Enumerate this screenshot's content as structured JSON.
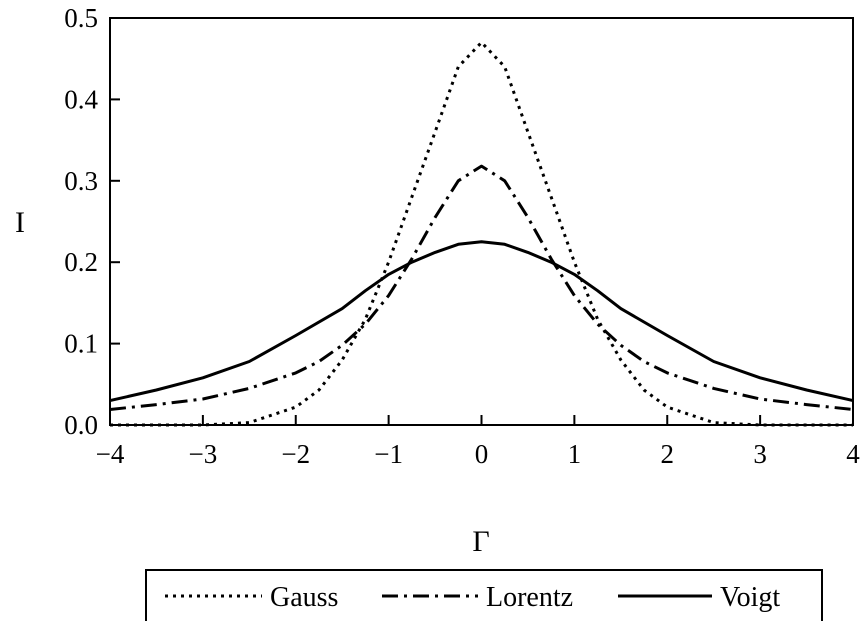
{
  "chart_data": {
    "type": "line",
    "title": "",
    "xlabel": "Γ",
    "ylabel": "I",
    "xlim": [
      -4,
      4
    ],
    "ylim": [
      0,
      0.5
    ],
    "x_ticks": [
      -4,
      -3,
      -2,
      -1,
      0,
      1,
      2,
      3,
      4
    ],
    "x_tick_labels": [
      "−4",
      "−3",
      "−2",
      "−1",
      "0",
      "1",
      "2",
      "3",
      "4"
    ],
    "y_ticks": [
      0,
      0.1,
      0.2,
      0.3,
      0.4,
      0.5
    ],
    "y_tick_labels": [
      "0.0",
      "0.1",
      "0.2",
      "0.3",
      "0.4",
      "0.5"
    ],
    "grid": false,
    "legend_position": "bottom",
    "series": [
      {
        "name": "Gauss",
        "style": "dotted",
        "x": [
          -4,
          -3.5,
          -3,
          -2.5,
          -2,
          -1.75,
          -1.5,
          -1.25,
          -1,
          -0.75,
          -0.5,
          -0.25,
          0,
          0.25,
          0.5,
          0.75,
          1,
          1.25,
          1.5,
          1.75,
          2,
          2.5,
          3,
          3.5,
          4
        ],
        "y": [
          0.0,
          0.0,
          0.0,
          0.003,
          0.022,
          0.043,
          0.08,
          0.13,
          0.2,
          0.28,
          0.36,
          0.44,
          0.47,
          0.44,
          0.36,
          0.28,
          0.2,
          0.13,
          0.08,
          0.043,
          0.022,
          0.003,
          0.0,
          0.0,
          0.0
        ]
      },
      {
        "name": "Lorentz",
        "style": "dash-dot",
        "x": [
          -4,
          -3.5,
          -3,
          -2.5,
          -2,
          -1.75,
          -1.5,
          -1.25,
          -1,
          -0.75,
          -0.5,
          -0.25,
          0,
          0.25,
          0.5,
          0.75,
          1,
          1.25,
          1.5,
          1.75,
          2,
          2.5,
          3,
          3.5,
          4
        ],
        "y": [
          0.019,
          0.025,
          0.032,
          0.045,
          0.064,
          0.078,
          0.098,
          0.124,
          0.159,
          0.204,
          0.255,
          0.3,
          0.318,
          0.3,
          0.255,
          0.204,
          0.159,
          0.124,
          0.098,
          0.078,
          0.064,
          0.045,
          0.032,
          0.025,
          0.019
        ]
      },
      {
        "name": "Voigt",
        "style": "solid",
        "x": [
          -4,
          -3.5,
          -3,
          -2.5,
          -2,
          -1.5,
          -1.25,
          -1,
          -0.75,
          -0.5,
          -0.25,
          0,
          0.25,
          0.5,
          0.75,
          1,
          1.25,
          1.5,
          2,
          2.5,
          3,
          3.5,
          4
        ],
        "y": [
          0.03,
          0.043,
          0.058,
          0.078,
          0.11,
          0.143,
          0.165,
          0.185,
          0.2,
          0.212,
          0.222,
          0.225,
          0.222,
          0.212,
          0.2,
          0.185,
          0.165,
          0.143,
          0.11,
          0.078,
          0.058,
          0.043,
          0.03
        ]
      }
    ]
  }
}
